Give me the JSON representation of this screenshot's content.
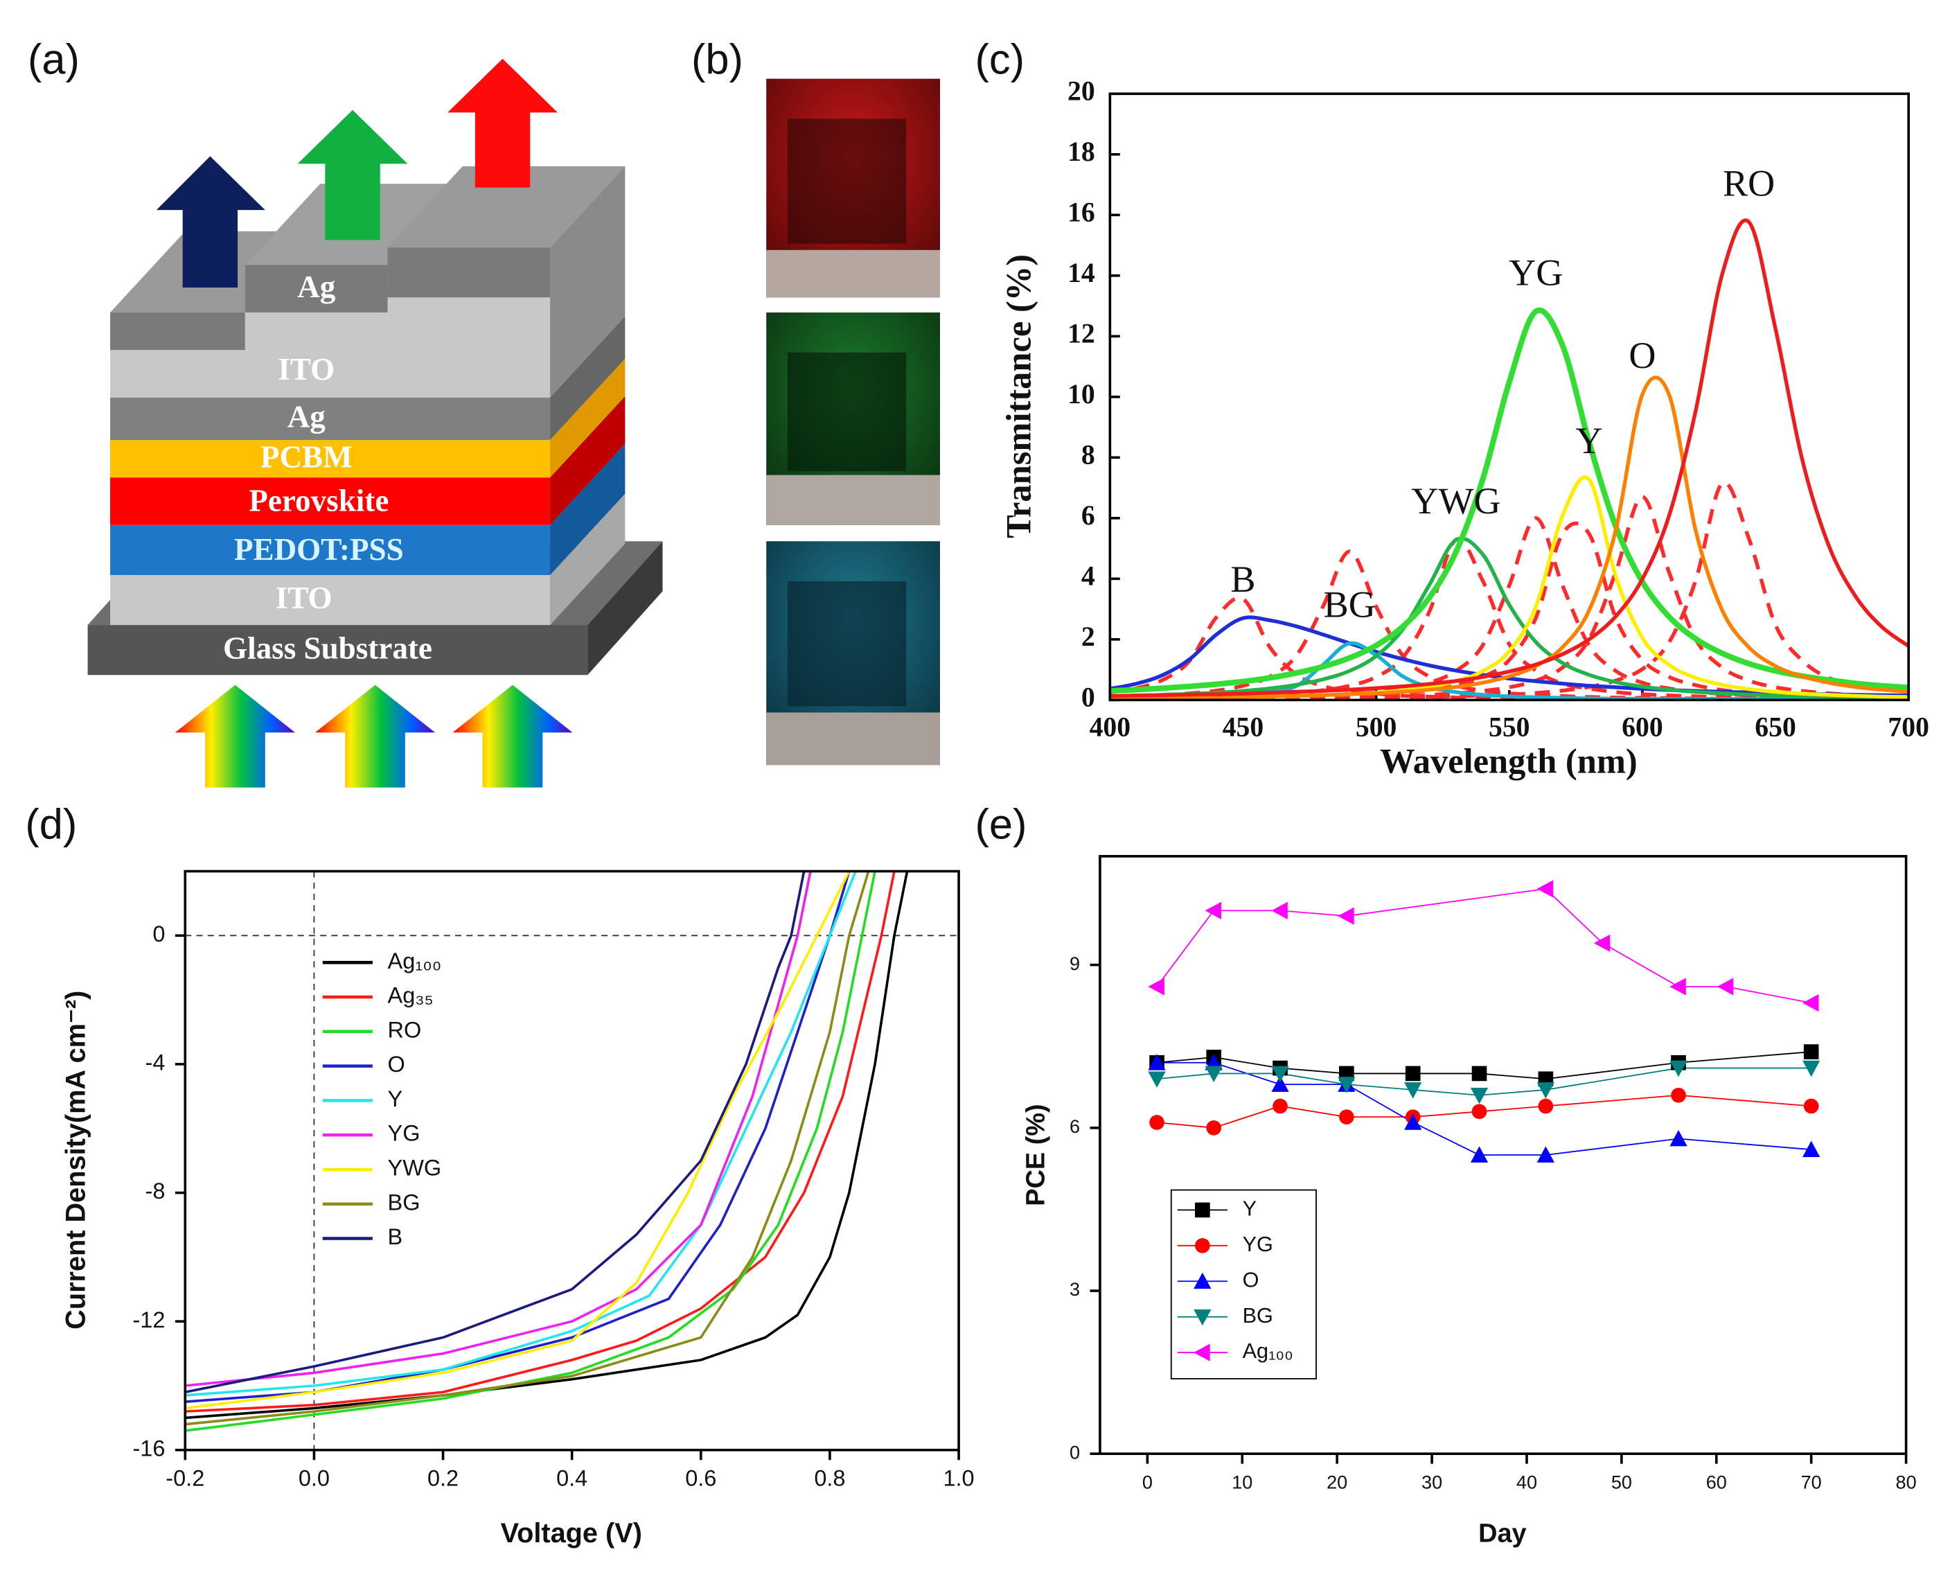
{
  "panel_labels": [
    "(a)",
    "(b)",
    "(c)",
    "(d)",
    "(e)"
  ],
  "device": {
    "layers": [
      "Ag",
      "ITO",
      "Ag",
      "PCBM",
      "Perovskite",
      "PEDOT:PSS",
      "ITO",
      "Glass Substrate"
    ]
  },
  "chart_data": [
    {
      "type": "line",
      "xlabel": "Wavelength (nm)",
      "ylabel": "Transmittance (%)",
      "peak_labels": true,
      "smooth": true,
      "x": [
        400,
        410,
        420,
        430,
        440,
        450,
        460,
        470,
        480,
        490,
        500,
        510,
        520,
        530,
        540,
        550,
        560,
        570,
        580,
        590,
        600,
        610,
        620,
        630,
        640,
        650,
        660,
        670,
        680,
        690,
        700
      ],
      "xlim": [
        400,
        700
      ],
      "xticks": [
        400,
        450,
        500,
        550,
        600,
        650,
        700
      ],
      "ylim": [
        0,
        20
      ],
      "yticks": [
        0,
        2,
        4,
        6,
        8,
        10,
        12,
        14,
        16,
        18,
        20
      ],
      "series": [
        {
          "color": "#ff2a2a",
          "dash": true,
          "values": [
            0.25,
            0.39,
            0.67,
            1.3,
            2.73,
            3.33,
            1.75,
            0.84,
            0.46,
            0.28,
            0.21,
            0.14,
            0.11,
            0.08,
            0.07,
            0.06,
            0.05,
            0.04,
            0.04,
            0.04,
            0.04,
            0.03,
            0.03,
            0.03,
            0.03,
            0.03,
            0.03,
            0.03,
            0.03,
            0.03,
            0.03
          ]
        },
        {
          "color": "#ff2a2a",
          "dash": true,
          "values": [
            0.1,
            0.13,
            0.17,
            0.22,
            0.31,
            0.47,
            0.77,
            1.46,
            3.08,
            4.9,
            3.08,
            1.46,
            0.77,
            0.47,
            0.31,
            0.22,
            0.17,
            0.13,
            0.1,
            0.08,
            0.07,
            0.06,
            0.05,
            0.04,
            0.04,
            0.04,
            0.04,
            0.04,
            0.04,
            0.04,
            0.04
          ]
        },
        {
          "color": "#ff2a2a",
          "dash": true,
          "values": [
            0.05,
            0.06,
            0.07,
            0.09,
            0.1,
            0.13,
            0.17,
            0.23,
            0.32,
            0.47,
            0.76,
            1.4,
            2.92,
            5.29,
            3.94,
            1.84,
            0.97,
            0.54,
            0.38,
            0.26,
            0.19,
            0.15,
            0.12,
            0.09,
            0.08,
            0.07,
            0.06,
            0.05,
            0.04,
            0.04,
            0.04
          ]
        },
        {
          "color": "#ff2a2a",
          "dash": true,
          "values": [
            0.04,
            0.05,
            0.05,
            0.06,
            0.07,
            0.08,
            0.1,
            0.12,
            0.16,
            0.2,
            0.27,
            0.38,
            0.57,
            0.96,
            1.8,
            3.78,
            6.0,
            3.78,
            1.8,
            0.96,
            0.57,
            0.38,
            0.27,
            0.2,
            0.16,
            0.12,
            0.1,
            0.08,
            0.07,
            0.06,
            0.05
          ]
        },
        {
          "color": "#ff2a2a",
          "dash": true,
          "values": [
            0.03,
            0.04,
            0.04,
            0.05,
            0.06,
            0.07,
            0.08,
            0.1,
            0.12,
            0.14,
            0.18,
            0.24,
            0.33,
            0.49,
            0.76,
            1.32,
            2.71,
            5.48,
            5.48,
            2.71,
            1.32,
            0.76,
            0.49,
            0.33,
            0.24,
            0.18,
            0.14,
            0.12,
            0.1,
            0.08,
            0.07
          ]
        },
        {
          "color": "#ff2a2a",
          "dash": true,
          "values": [
            0.03,
            0.03,
            0.03,
            0.04,
            0.04,
            0.05,
            0.06,
            0.07,
            0.08,
            0.09,
            0.11,
            0.13,
            0.17,
            0.22,
            0.3,
            0.42,
            0.64,
            1.07,
            2.01,
            4.22,
            6.7,
            4.22,
            2.01,
            1.07,
            0.64,
            0.42,
            0.3,
            0.22,
            0.17,
            0.13,
            0.11
          ]
        },
        {
          "color": "#ff2a2a",
          "dash": true,
          "values": [
            0.03,
            0.03,
            0.03,
            0.03,
            0.04,
            0.04,
            0.04,
            0.05,
            0.05,
            0.06,
            0.07,
            0.08,
            0.09,
            0.12,
            0.15,
            0.18,
            0.23,
            0.31,
            0.43,
            0.64,
            1.02,
            1.9,
            3.94,
            7.15,
            5.33,
            2.48,
            1.31,
            0.73,
            0.51,
            0.37,
            0.26
          ]
        },
        {
          "name": "B",
          "color": "#1f2fd6",
          "values": [
            0.37,
            0.54,
            0.83,
            1.35,
            2.16,
            2.7,
            2.63,
            2.43,
            2.16,
            1.87,
            1.59,
            1.35,
            1.14,
            0.97,
            0.83,
            0.71,
            0.62,
            0.54,
            0.47,
            0.42,
            0.37,
            0.33,
            0.3,
            0.27,
            0.25,
            0.22,
            0.2,
            0.19,
            0.17,
            0.16,
            0.15
          ]
        },
        {
          "name": "BG",
          "color": "#1ab0d0",
          "values": [
            0.05,
            0.06,
            0.08,
            0.1,
            0.15,
            0.19,
            0.29,
            0.46,
            1.16,
            1.87,
            1.48,
            0.78,
            0.42,
            0.26,
            0.17,
            0.12,
            0.09,
            0.07,
            0.05,
            0.04,
            0.04,
            0.03,
            0.03,
            0.03,
            0.03,
            0.03,
            0.03,
            0.03,
            0.03,
            0.03,
            0.03
          ]
        },
        {
          "name": "YWG",
          "color": "#22b34a",
          "values": [
            0.12,
            0.14,
            0.17,
            0.2,
            0.24,
            0.3,
            0.38,
            0.5,
            0.68,
            0.96,
            1.45,
            2.33,
            3.8,
            5.28,
            4.81,
            3.14,
            1.91,
            1.22,
            0.83,
            0.59,
            0.44,
            0.34,
            0.27,
            0.22,
            0.18,
            0.15,
            0.13,
            0.11,
            0.1,
            0.09,
            0.08
          ]
        },
        {
          "name": "YG",
          "color": "#33dd33",
          "values": [
            0.3,
            0.34,
            0.39,
            0.45,
            0.52,
            0.61,
            0.73,
            0.89,
            1.1,
            1.39,
            1.8,
            2.42,
            3.38,
            4.89,
            7.27,
            10.49,
            12.82,
            11.7,
            8.5,
            5.73,
            3.9,
            2.75,
            2.02,
            1.54,
            1.2,
            0.96,
            0.79,
            0.66,
            0.55,
            0.47,
            0.41
          ]
        },
        {
          "name": "Y",
          "color": "#ffee00",
          "values": [
            0.05,
            0.05,
            0.06,
            0.07,
            0.08,
            0.09,
            0.11,
            0.13,
            0.16,
            0.19,
            0.24,
            0.32,
            0.43,
            0.62,
            0.95,
            1.61,
            3.08,
            6.08,
            7.27,
            4.08,
            2.05,
            1.16,
            0.73,
            0.5,
            0.36,
            0.27,
            0.21,
            0.17,
            0.14,
            0.11,
            0.1
          ]
        },
        {
          "name": "O",
          "color": "#ff7f00",
          "values": [
            0.06,
            0.07,
            0.07,
            0.08,
            0.09,
            0.1,
            0.12,
            0.14,
            0.16,
            0.19,
            0.22,
            0.27,
            0.34,
            0.43,
            0.57,
            0.78,
            1.12,
            1.74,
            2.96,
            5.6,
            10.08,
            10.08,
            5.6,
            2.96,
            1.74,
            1.12,
            0.78,
            0.57,
            0.43,
            0.34,
            0.27
          ]
        },
        {
          "name": "RO",
          "color": "#ee1c1c",
          "values": [
            0.13,
            0.15,
            0.16,
            0.18,
            0.19,
            0.21,
            0.24,
            0.27,
            0.3,
            0.34,
            0.39,
            0.45,
            0.53,
            0.63,
            0.76,
            0.94,
            1.17,
            1.51,
            2.0,
            2.76,
            3.99,
            6.07,
            9.53,
            14.05,
            15.77,
            12.25,
            7.95,
            5.1,
            3.43,
            2.41,
            1.78
          ]
        }
      ]
    },
    {
      "type": "line",
      "xlabel": "Voltage (V)",
      "ylabel": "Current Density(mA cm⁻²)",
      "legend": "upper left",
      "xlim": [
        -0.2,
        1.0
      ],
      "xticks": [
        -0.2,
        {
          "value": 0,
          "label": "0.0"
        },
        0.2,
        0.4,
        0.6,
        0.8,
        {
          "value": 1,
          "label": "1.0"
        }
      ],
      "ylim": [
        -16,
        2
      ],
      "yticks": [
        -16,
        -12,
        -8,
        -4,
        0
      ],
      "reference_lines": {
        "x": 0,
        "y": 0
      },
      "series": [
        {
          "name": "Ag₁₀₀",
          "color": "#000000",
          "x": [
            -0.2,
            0,
            0.2,
            0.4,
            0.6,
            0.7,
            0.75,
            0.8,
            0.83,
            0.85,
            0.87,
            0.9,
            0.92
          ],
          "values": [
            -15.0,
            -14.7,
            -14.3,
            -13.8,
            -13.2,
            -12.5,
            -11.8,
            -10.0,
            -8.0,
            -6.0,
            -4.0,
            0.0,
            2.0
          ]
        },
        {
          "name": "Ag₃₅",
          "color": "#ff1a1a",
          "x": [
            -0.2,
            0,
            0.2,
            0.4,
            0.5,
            0.6,
            0.7,
            0.76,
            0.82,
            0.88,
            0.9
          ],
          "values": [
            -14.8,
            -14.6,
            -14.2,
            -13.2,
            -12.6,
            -11.6,
            -10.0,
            -8.0,
            -5.0,
            0.0,
            2.0
          ]
        },
        {
          "name": "RO",
          "color": "#22dd22",
          "x": [
            -0.2,
            0,
            0.2,
            0.4,
            0.55,
            0.65,
            0.72,
            0.78,
            0.82,
            0.85,
            0.87
          ],
          "values": [
            -15.4,
            -14.9,
            -14.4,
            -13.6,
            -12.5,
            -11.0,
            -9.0,
            -6.0,
            -3.0,
            0.0,
            2.0
          ]
        },
        {
          "name": "O",
          "color": "#2020c8",
          "x": [
            -0.2,
            0,
            0.2,
            0.4,
            0.55,
            0.63,
            0.7,
            0.75,
            0.8,
            0.83
          ],
          "values": [
            -14.5,
            -14.2,
            -13.5,
            -12.5,
            -11.3,
            -9.0,
            -6.0,
            -3.0,
            0.0,
            2.0
          ]
        },
        {
          "name": "Y",
          "color": "#22e5f0",
          "x": [
            -0.2,
            0,
            0.2,
            0.4,
            0.52,
            0.6,
            0.67,
            0.74,
            0.8,
            0.84
          ],
          "values": [
            -14.3,
            -14.0,
            -13.5,
            -12.3,
            -11.2,
            -9.0,
            -6.0,
            -3.0,
            0.0,
            2.0
          ]
        },
        {
          "name": "YG",
          "color": "#ee22ee",
          "x": [
            -0.2,
            0,
            0.2,
            0.4,
            0.5,
            0.6,
            0.68,
            0.75,
            0.77
          ],
          "values": [
            -14.0,
            -13.6,
            -13.0,
            -12.0,
            -11.0,
            -9.0,
            -5.0,
            0.0,
            2.0
          ]
        },
        {
          "name": "YWG",
          "color": "#ffee00",
          "x": [
            -0.2,
            0,
            0.2,
            0.4,
            0.5,
            0.58,
            0.65,
            0.73,
            0.78,
            0.83
          ],
          "values": [
            -14.7,
            -14.2,
            -13.6,
            -12.6,
            -10.8,
            -8.0,
            -5.0,
            -2.0,
            0.0,
            2.0
          ]
        },
        {
          "name": "BG",
          "color": "#8b8b1a",
          "x": [
            -0.2,
            0,
            0.2,
            0.4,
            0.6,
            0.68,
            0.74,
            0.8,
            0.83,
            0.86
          ],
          "values": [
            -15.2,
            -14.8,
            -14.3,
            -13.7,
            -12.5,
            -10.0,
            -7.0,
            -3.0,
            0.0,
            2.0
          ]
        },
        {
          "name": "B",
          "color": "#1a1a80",
          "x": [
            -0.2,
            0,
            0.2,
            0.4,
            0.5,
            0.6,
            0.67,
            0.72,
            0.74,
            0.76
          ],
          "values": [
            -14.2,
            -13.4,
            -12.5,
            -11.0,
            -9.3,
            -7.0,
            -4.0,
            -1.0,
            0.0,
            2.0
          ]
        }
      ]
    },
    {
      "type": "line",
      "xlabel": "Day",
      "ylabel": "PCE (%)",
      "legend": "lower left",
      "markers": true,
      "xlim": [
        -5,
        80
      ],
      "xticks": [
        0,
        10,
        20,
        30,
        40,
        50,
        60,
        70,
        80
      ],
      "ylim": [
        0,
        11
      ],
      "yticks": [
        0,
        3,
        6,
        9
      ],
      "series": [
        {
          "name": "Y",
          "color": "#000000",
          "marker": "square",
          "x": [
            1,
            7,
            14,
            21,
            28,
            35,
            42,
            56,
            70
          ],
          "values": [
            7.2,
            7.3,
            7.1,
            7.0,
            7.0,
            7.0,
            6.9,
            7.2,
            7.4
          ]
        },
        {
          "name": "YG",
          "color": "#ff0000",
          "marker": "circle",
          "x": [
            1,
            7,
            14,
            21,
            28,
            35,
            42,
            56,
            70
          ],
          "values": [
            6.1,
            6.0,
            6.4,
            6.2,
            6.2,
            6.3,
            6.4,
            6.6,
            6.4
          ]
        },
        {
          "name": "O",
          "color": "#0000ff",
          "marker": "triangle-up",
          "x": [
            1,
            7,
            14,
            21,
            28,
            35,
            42,
            56,
            70
          ],
          "values": [
            7.2,
            7.2,
            6.8,
            6.8,
            6.1,
            5.5,
            5.5,
            5.8,
            5.6
          ]
        },
        {
          "name": "BG",
          "color": "#008080",
          "marker": "triangle-down",
          "x": [
            1,
            7,
            14,
            21,
            28,
            35,
            42,
            56,
            70
          ],
          "values": [
            6.9,
            7.0,
            7.0,
            6.8,
            6.7,
            6.6,
            6.7,
            7.1,
            7.1
          ]
        },
        {
          "name": "Ag₁₀₀",
          "color": "#ff00ff",
          "marker": "triangle-left",
          "x": [
            1,
            7,
            14,
            21,
            42,
            48,
            56,
            61,
            70
          ],
          "values": [
            8.6,
            10.0,
            10.0,
            9.9,
            10.4,
            9.4,
            8.6,
            8.6,
            8.3
          ]
        }
      ]
    }
  ]
}
